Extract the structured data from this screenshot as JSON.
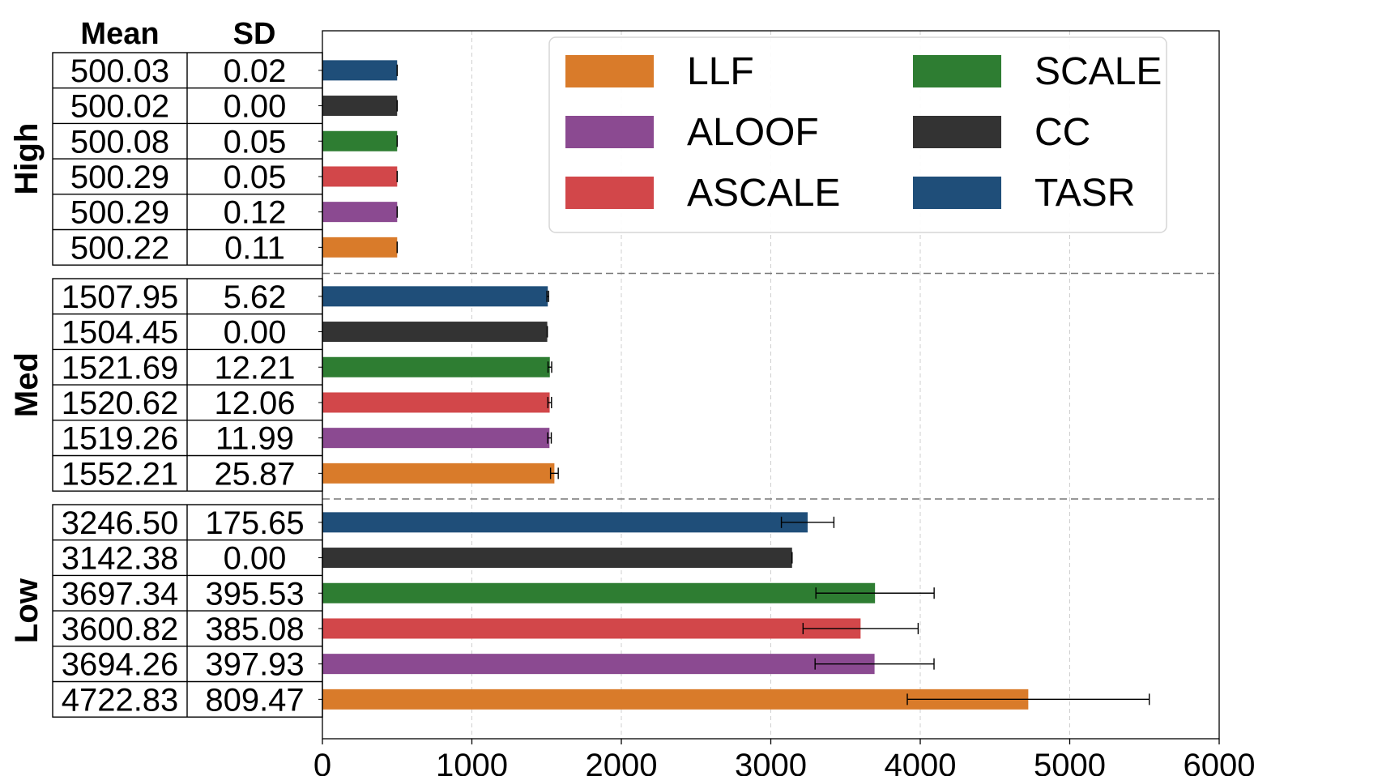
{
  "table": {
    "header": {
      "mean": "Mean",
      "sd": "SD"
    }
  },
  "chart_data": {
    "type": "bar",
    "orientation": "horizontal",
    "xlim": [
      0,
      6000
    ],
    "xticks": [
      0,
      1000,
      2000,
      3000,
      4000,
      5000,
      6000
    ],
    "grid": "vertical dashed",
    "legend_position": "top-right",
    "groups": [
      {
        "name": "High",
        "bars": [
          {
            "series": "TASR",
            "mean": 500.03,
            "sd": 0.02,
            "mean_label": "500.03",
            "sd_label": "0.02"
          },
          {
            "series": "CC",
            "mean": 500.02,
            "sd": 0.0,
            "mean_label": "500.02",
            "sd_label": "0.00"
          },
          {
            "series": "SCALE",
            "mean": 500.08,
            "sd": 0.05,
            "mean_label": "500.08",
            "sd_label": "0.05"
          },
          {
            "series": "ASCALE",
            "mean": 500.29,
            "sd": 0.05,
            "mean_label": "500.29",
            "sd_label": "0.05"
          },
          {
            "series": "ALOOF",
            "mean": 500.29,
            "sd": 0.12,
            "mean_label": "500.29",
            "sd_label": "0.12"
          },
          {
            "series": "LLF",
            "mean": 500.22,
            "sd": 0.11,
            "mean_label": "500.22",
            "sd_label": "0.11"
          }
        ]
      },
      {
        "name": "Med",
        "bars": [
          {
            "series": "TASR",
            "mean": 1507.95,
            "sd": 5.62,
            "mean_label": "1507.95",
            "sd_label": "5.62"
          },
          {
            "series": "CC",
            "mean": 1504.45,
            "sd": 0.0,
            "mean_label": "1504.45",
            "sd_label": "0.00"
          },
          {
            "series": "SCALE",
            "mean": 1521.69,
            "sd": 12.21,
            "mean_label": "1521.69",
            "sd_label": "12.21"
          },
          {
            "series": "ASCALE",
            "mean": 1520.62,
            "sd": 12.06,
            "mean_label": "1520.62",
            "sd_label": "12.06"
          },
          {
            "series": "ALOOF",
            "mean": 1519.26,
            "sd": 11.99,
            "mean_label": "1519.26",
            "sd_label": "11.99"
          },
          {
            "series": "LLF",
            "mean": 1552.21,
            "sd": 25.87,
            "mean_label": "1552.21",
            "sd_label": "25.87"
          }
        ]
      },
      {
        "name": "Low",
        "bars": [
          {
            "series": "TASR",
            "mean": 3246.5,
            "sd": 175.65,
            "mean_label": "3246.50",
            "sd_label": "175.65"
          },
          {
            "series": "CC",
            "mean": 3142.38,
            "sd": 0.0,
            "mean_label": "3142.38",
            "sd_label": "0.00"
          },
          {
            "series": "SCALE",
            "mean": 3697.34,
            "sd": 395.53,
            "mean_label": "3697.34",
            "sd_label": "395.53"
          },
          {
            "series": "ASCALE",
            "mean": 3600.82,
            "sd": 385.08,
            "mean_label": "3600.82",
            "sd_label": "385.08"
          },
          {
            "series": "ALOOF",
            "mean": 3694.26,
            "sd": 397.93,
            "mean_label": "3694.26",
            "sd_label": "397.93"
          },
          {
            "series": "LLF",
            "mean": 4722.83,
            "sd": 809.47,
            "mean_label": "4722.83",
            "sd_label": "809.47"
          }
        ]
      }
    ],
    "legend": [
      {
        "name": "LLF",
        "color": "#d97b2a"
      },
      {
        "name": "ALOOF",
        "color": "#8b4a91"
      },
      {
        "name": "ASCALE",
        "color": "#d2474a"
      },
      {
        "name": "SCALE",
        "color": "#2e7d32"
      },
      {
        "name": "CC",
        "color": "#333333"
      },
      {
        "name": "TASR",
        "color": "#1f4e79"
      }
    ],
    "colors": {
      "LLF": "#d97b2a",
      "ALOOF": "#8b4a91",
      "ASCALE": "#d2474a",
      "SCALE": "#2e7d32",
      "CC": "#333333",
      "TASR": "#1f4e79"
    }
  }
}
